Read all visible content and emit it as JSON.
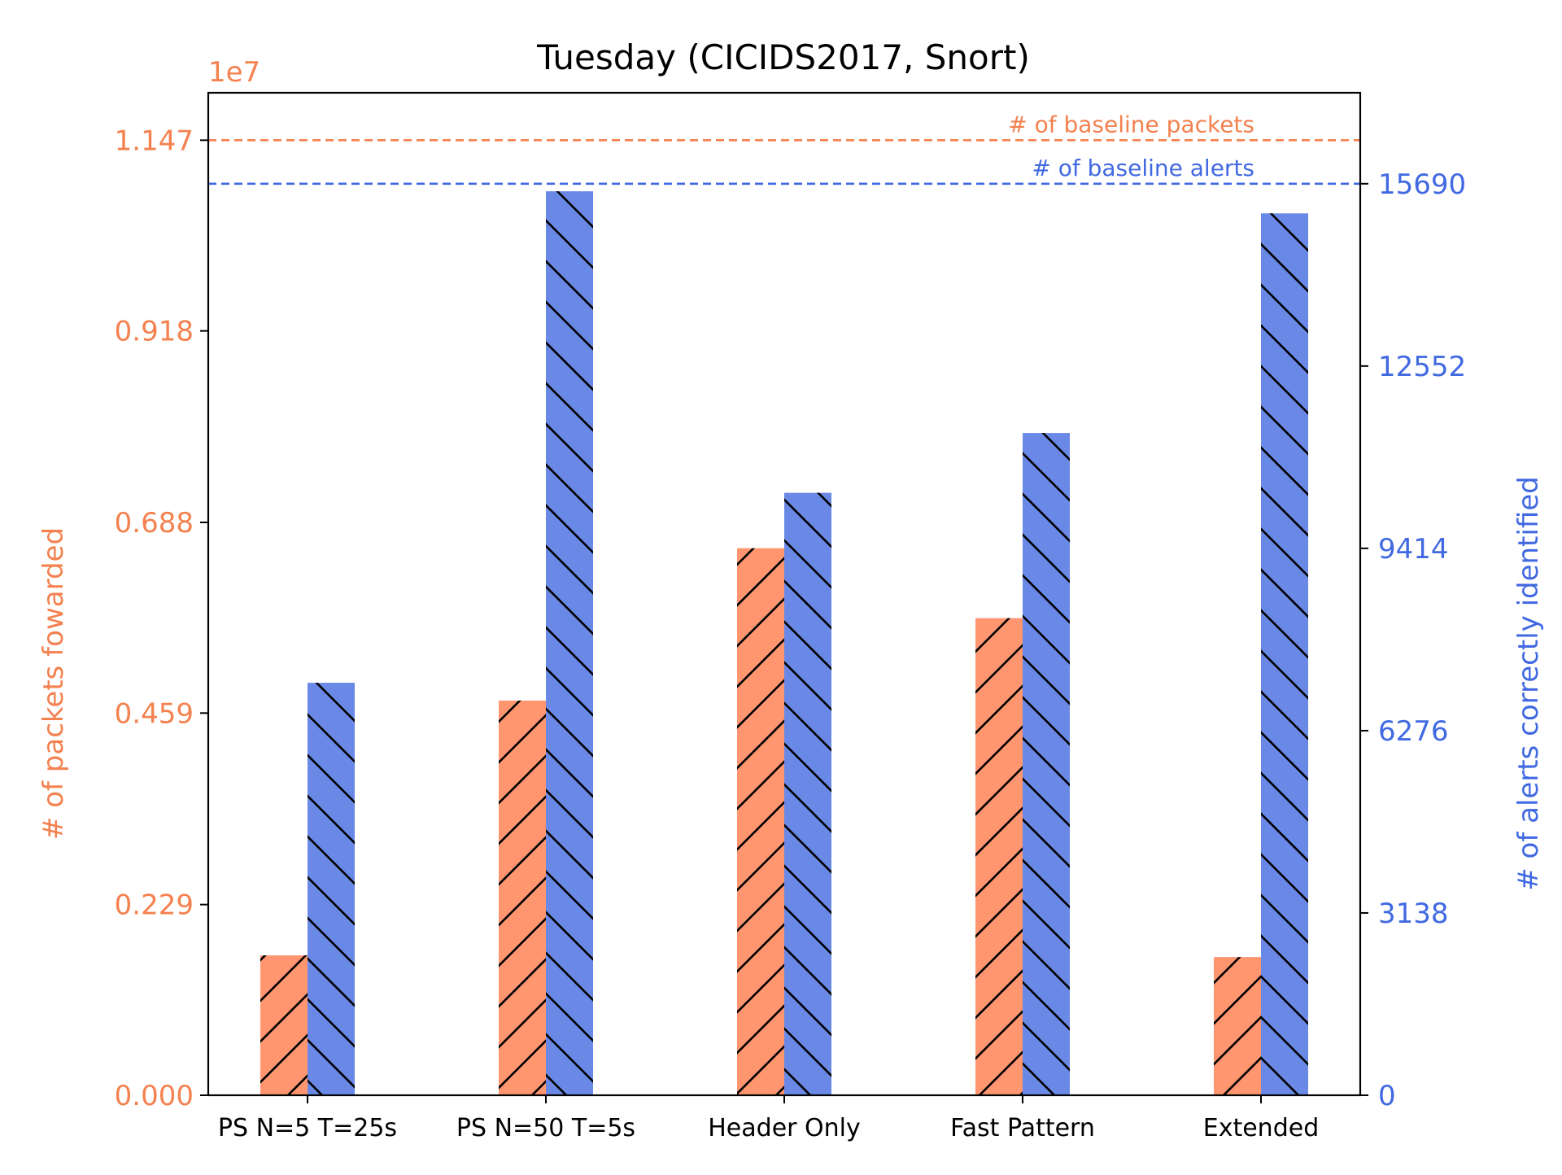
{
  "chart_data": {
    "type": "bar",
    "title": "Tuesday (CICIDS2017, Snort)",
    "categories": [
      "PS N=5 T=25s",
      "PS N=50 T=5s",
      "Header Only",
      "Fast Pattern",
      "Extended"
    ],
    "left_axis": {
      "label": "# of packets fowarded",
      "offset_text": "1e7",
      "scale": 10000000,
      "ticks": [
        "0.000",
        "0.229",
        "0.459",
        "0.688",
        "0.918",
        "1.147"
      ],
      "ylim": [
        0,
        1.204
      ],
      "color": "#f4814f"
    },
    "right_axis": {
      "label": "# of alerts correctly identified",
      "ticks": [
        "0",
        "3138",
        "6276",
        "9414",
        "12552",
        "15690"
      ],
      "ylim": [
        0,
        17256
      ],
      "color": "#4169e1"
    },
    "series": [
      {
        "axis": "left",
        "color": "#ff9670",
        "hatch": "forward",
        "values": [
          0.168,
          0.474,
          0.657,
          0.573,
          0.166
        ]
      },
      {
        "axis": "right",
        "color": "#6a89e6",
        "hatch": "back",
        "values": [
          7100,
          15560,
          10370,
          11400,
          15180
        ]
      }
    ],
    "baselines": [
      {
        "label": "# of baseline packets",
        "axis": "left",
        "value": 1.147,
        "color": "#f4814f"
      },
      {
        "label": "# of baseline alerts",
        "axis": "right",
        "value": 15690,
        "color": "#4169e1"
      }
    ]
  }
}
